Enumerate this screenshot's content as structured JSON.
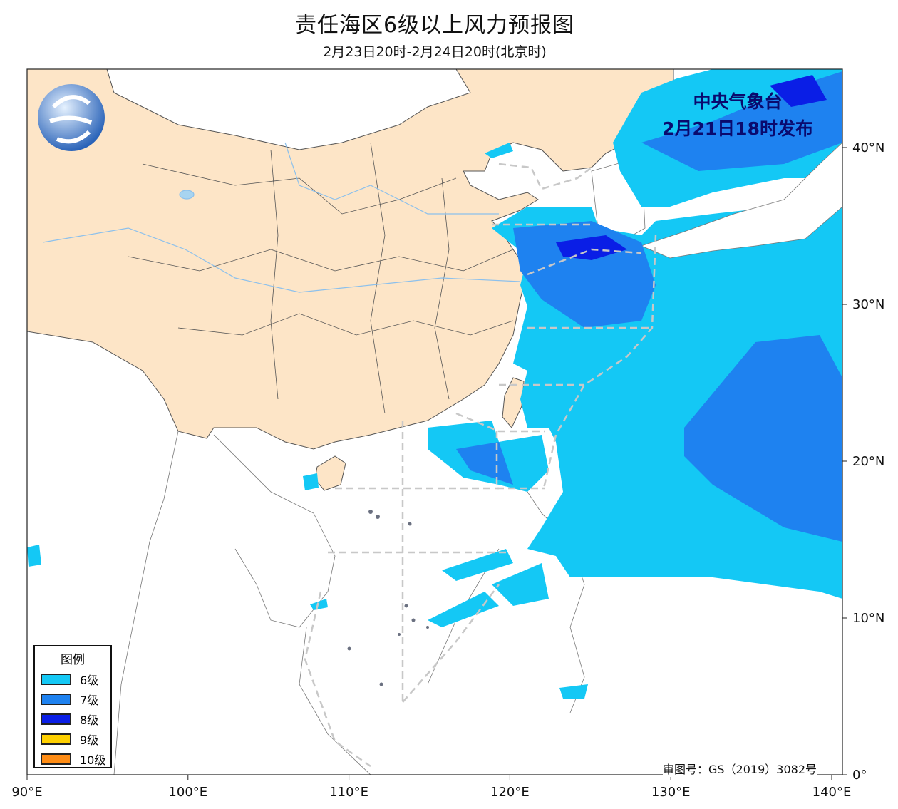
{
  "title": "责任海区6级以上风力预报图",
  "subtitle": "2月23日20时-2月24日20时(北京时)",
  "issuer": {
    "line1": "中央气象台",
    "line2": "2月21日18时发布"
  },
  "logo": "cma-logo",
  "approval_number": "审图号：GS（2019）3082号",
  "map": {
    "extent": {
      "lon": [
        90,
        140.7
      ],
      "lat": [
        0,
        45
      ]
    },
    "lon_ticks": [
      {
        "value": 90,
        "label": "90°E"
      },
      {
        "value": 100,
        "label": "100°E"
      },
      {
        "value": 110,
        "label": "110°E"
      },
      {
        "value": 120,
        "label": "120°E"
      },
      {
        "value": 130,
        "label": "130°E"
      },
      {
        "value": 140,
        "label": "140°E"
      }
    ],
    "lat_ticks": [
      {
        "value": 0,
        "label": "0°"
      },
      {
        "value": 10,
        "label": "10°N"
      },
      {
        "value": 20,
        "label": "20°N"
      },
      {
        "value": 30,
        "label": "30°N"
      },
      {
        "value": 40,
        "label": "40°N"
      }
    ],
    "colors": {
      "china_land": "#fde5c7",
      "boundary": "#555555",
      "sea_zone_lines": "#c8c8c8",
      "river": "#8cc0ec"
    }
  },
  "legend": {
    "title": "图例",
    "items": [
      {
        "label": "6级",
        "color": "#14c8f5"
      },
      {
        "label": "7级",
        "color": "#1e82f0"
      },
      {
        "label": "8级",
        "color": "#0a1ee6"
      },
      {
        "label": "9级",
        "color": "#ffd000"
      },
      {
        "label": "10级",
        "color": "#ff8c14"
      }
    ]
  }
}
